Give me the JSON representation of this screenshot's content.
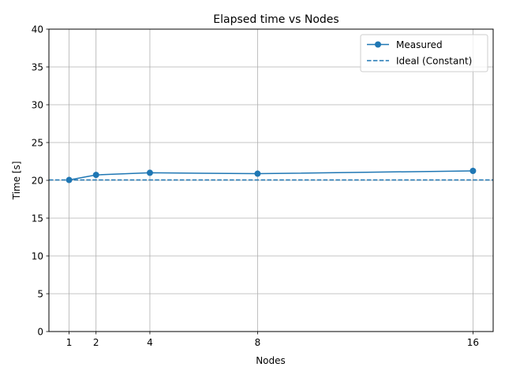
{
  "chart_data": {
    "type": "line",
    "title": "Elapsed time vs Nodes",
    "xlabel": "Nodes",
    "ylabel": "Time [s]",
    "xticks": [
      1,
      2,
      4,
      8,
      16
    ],
    "yticks": [
      0,
      5,
      10,
      15,
      20,
      25,
      30,
      35,
      40
    ],
    "xlim": [
      0.25,
      16.75
    ],
    "ylim": [
      0,
      40
    ],
    "grid": true,
    "legend_position": "top-right",
    "series": [
      {
        "name": "Measured",
        "style": "solid-line-circle-markers",
        "color": "#1f77b4",
        "x": [
          1,
          2,
          4,
          8,
          16
        ],
        "y": [
          20.05,
          20.72,
          21.0,
          20.88,
          21.25
        ]
      },
      {
        "name": "Ideal (Constant)",
        "style": "dashed-horizontal-line",
        "color": "#1f77b4",
        "y": 20.05
      }
    ]
  }
}
